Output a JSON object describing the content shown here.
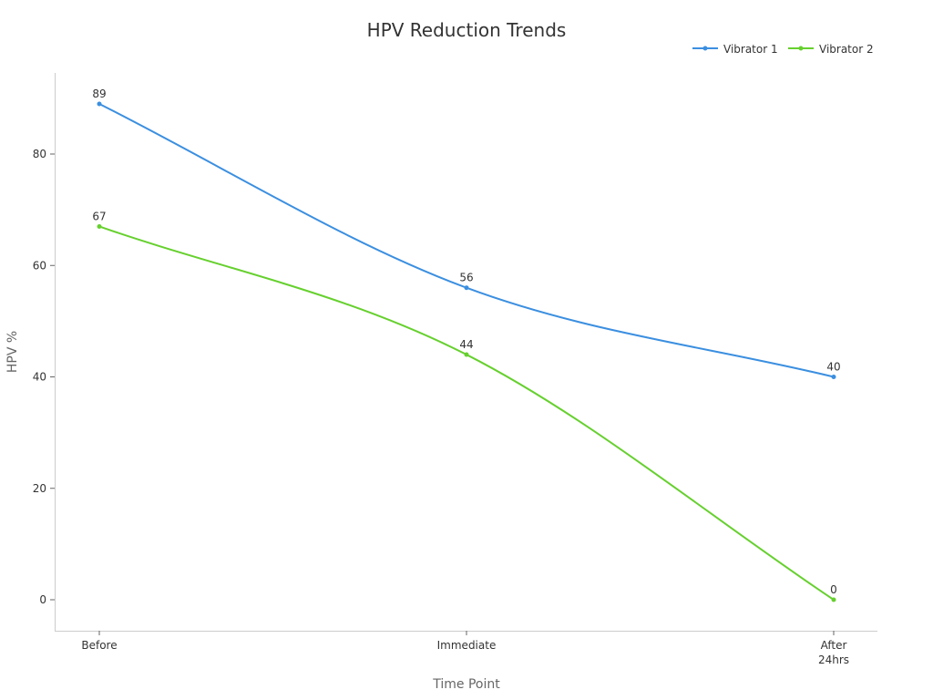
{
  "chart_data": {
    "type": "line",
    "title": "HPV Reduction Trends",
    "xlabel": "Time Point",
    "ylabel": "HPV %",
    "categories": [
      "Before",
      "Immediate",
      "After 24hrs"
    ],
    "category_lines": [
      [
        "Before"
      ],
      [
        "Immediate"
      ],
      [
        "After",
        "24hrs"
      ]
    ],
    "series": [
      {
        "name": "Vibrator 1",
        "color": "#3b8fe0",
        "values": [
          89,
          56,
          40
        ]
      },
      {
        "name": "Vibrator 2",
        "color": "#66d02e",
        "values": [
          67,
          44,
          0
        ]
      }
    ],
    "yticks": [
      0,
      20,
      40,
      60,
      80
    ],
    "ylim": [
      -5.5,
      94.5
    ],
    "grid": false,
    "legend_position": "top-right",
    "smooth": true,
    "data_labels": true
  }
}
